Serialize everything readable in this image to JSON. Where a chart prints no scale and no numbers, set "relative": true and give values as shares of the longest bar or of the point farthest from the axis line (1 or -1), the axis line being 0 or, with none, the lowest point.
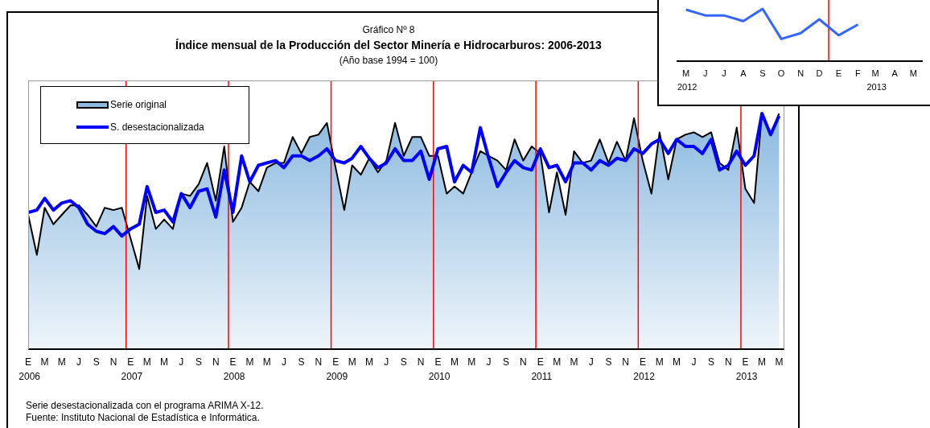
{
  "chart_data": [
    {
      "type": "area",
      "title": "Índice mensual de la Producción del Sector Minería e Hidrocarburos: 2006-2013",
      "subtitle": "(Año base 1994 = 100)",
      "annotations": [
        "Gráfico Nº 8",
        "Serie desestacionalizada con el programa ARIMA X-12.",
        "Fuente: Instituto Nacional de Estadística e Informática."
      ],
      "relative": true,
      "legend": "top left",
      "grid": false,
      "x": [
        "2006-01",
        "2006-02",
        "2006-03",
        "2006-04",
        "2006-05",
        "2006-06",
        "2006-07",
        "2006-08",
        "2006-09",
        "2006-10",
        "2006-11",
        "2006-12",
        "2007-01",
        "2007-02",
        "2007-03",
        "2007-04",
        "2007-05",
        "2007-06",
        "2007-07",
        "2007-08",
        "2007-09",
        "2007-10",
        "2007-11",
        "2007-12",
        "2008-01",
        "2008-02",
        "2008-03",
        "2008-04",
        "2008-05",
        "2008-06",
        "2008-07",
        "2008-08",
        "2008-09",
        "2008-10",
        "2008-11",
        "2008-12",
        "2009-01",
        "2009-02",
        "2009-03",
        "2009-04",
        "2009-05",
        "2009-06",
        "2009-07",
        "2009-08",
        "2009-09",
        "2009-10",
        "2009-11",
        "2009-12",
        "2010-01",
        "2010-02",
        "2010-03",
        "2010-04",
        "2010-05",
        "2010-06",
        "2010-07",
        "2010-08",
        "2010-09",
        "2010-10",
        "2010-11",
        "2010-12",
        "2011-01",
        "2011-02",
        "2011-03",
        "2011-04",
        "2011-05",
        "2011-06",
        "2011-07",
        "2011-08",
        "2011-09",
        "2011-10",
        "2011-11",
        "2011-12",
        "2012-01",
        "2012-02",
        "2012-03",
        "2012-04",
        "2012-05",
        "2012-06",
        "2012-07",
        "2012-08",
        "2012-09",
        "2012-10",
        "2012-11",
        "2012-12",
        "2013-01",
        "2013-02",
        "2013-03",
        "2013-04",
        "2013-05"
      ],
      "xlim": [
        "2006-01",
        "2013-05-20"
      ],
      "xticks": [
        {
          "value": "2006-01",
          "label": "E 2006"
        },
        {
          "value": "2006-03",
          "label": "M"
        },
        {
          "value": "2006-05",
          "label": "M"
        },
        {
          "value": "2006-07",
          "label": "J"
        },
        {
          "value": "2006-09",
          "label": "S"
        },
        {
          "value": "2006-11",
          "label": "N"
        },
        {
          "value": "2007-01",
          "label": "E 2007"
        },
        {
          "value": "2007-03",
          "label": "M"
        },
        {
          "value": "2007-05",
          "label": "M"
        },
        {
          "value": "2007-07",
          "label": "J"
        },
        {
          "value": "2007-09",
          "label": "S"
        },
        {
          "value": "2007-11",
          "label": "N"
        },
        {
          "value": "2008-01",
          "label": "E 2008"
        },
        {
          "value": "2008-03",
          "label": "M"
        },
        {
          "value": "2008-05",
          "label": "M"
        },
        {
          "value": "2008-07",
          "label": "J"
        },
        {
          "value": "2008-09",
          "label": "S"
        },
        {
          "value": "2008-11",
          "label": "N"
        },
        {
          "value": "2009-01",
          "label": "E 2009"
        },
        {
          "value": "2009-03",
          "label": "M"
        },
        {
          "value": "2009-05",
          "label": "M"
        },
        {
          "value": "2009-07",
          "label": "J"
        },
        {
          "value": "2009-09",
          "label": "S"
        },
        {
          "value": "2009-11",
          "label": "N"
        },
        {
          "value": "2010-01",
          "label": "E 2010"
        },
        {
          "value": "2010-03",
          "label": "M"
        },
        {
          "value": "2010-05",
          "label": "M"
        },
        {
          "value": "2010-07",
          "label": "J"
        },
        {
          "value": "2010-09",
          "label": "S"
        },
        {
          "value": "2010-11",
          "label": "N"
        },
        {
          "value": "2011-01",
          "label": "E 2011"
        },
        {
          "value": "2011-03",
          "label": "M"
        },
        {
          "value": "2011-05",
          "label": "M"
        },
        {
          "value": "2011-07",
          "label": "J"
        },
        {
          "value": "2011-09",
          "label": "S"
        },
        {
          "value": "2011-11",
          "label": "N"
        },
        {
          "value": "2012-01",
          "label": "E 2012"
        },
        {
          "value": "2012-03",
          "label": "M"
        },
        {
          "value": "2012-05",
          "label": "M"
        },
        {
          "value": "2012-07",
          "label": "J"
        },
        {
          "value": "2012-09",
          "label": "S"
        },
        {
          "value": "2012-11",
          "label": "N"
        },
        {
          "value": "2013-01",
          "label": "E 2013"
        },
        {
          "value": "2013-03",
          "label": "M"
        },
        {
          "value": "2013-05",
          "label": "M"
        }
      ],
      "series": [
        {
          "name": "Serie original",
          "color": "#8cbae0",
          "values": [
            0.57,
            0.4,
            0.6,
            0.53,
            0.57,
            0.61,
            0.61,
            0.57,
            0.52,
            0.6,
            0.59,
            0.6,
            0.47,
            0.34,
            0.65,
            0.51,
            0.55,
            0.51,
            0.66,
            0.65,
            0.7,
            0.79,
            0.63,
            0.86,
            0.54,
            0.6,
            0.71,
            0.67,
            0.77,
            0.79,
            0.79,
            0.9,
            0.83,
            0.9,
            0.91,
            0.96,
            0.77,
            0.59,
            0.78,
            0.74,
            0.81,
            0.75,
            0.8,
            0.96,
            0.82,
            0.9,
            0.9,
            0.82,
            0.82,
            0.66,
            0.69,
            0.66,
            0.75,
            0.84,
            0.82,
            0.8,
            0.76,
            0.89,
            0.8,
            0.86,
            0.83,
            0.58,
            0.75,
            0.57,
            0.84,
            0.79,
            0.8,
            0.89,
            0.79,
            0.88,
            0.8,
            0.98,
            0.8,
            0.66,
            0.92,
            0.72,
            0.89,
            0.91,
            0.92,
            0.9,
            0.92,
            0.79,
            0.76,
            0.94,
            0.68,
            0.62,
            1,
            0.91,
            1
          ]
        },
        {
          "name": "S. desestacionalizada",
          "type": "line",
          "color": "#0000ff",
          "values": [
            0.58,
            0.59,
            0.64,
            0.59,
            0.62,
            0.63,
            0.6,
            0.53,
            0.5,
            0.49,
            0.52,
            0.48,
            0.51,
            0.53,
            0.69,
            0.58,
            0.59,
            0.54,
            0.66,
            0.6,
            0.67,
            0.68,
            0.56,
            0.76,
            0.58,
            0.82,
            0.71,
            0.78,
            0.79,
            0.8,
            0.77,
            0.82,
            0.82,
            0.8,
            0.82,
            0.85,
            0.8,
            0.79,
            0.81,
            0.86,
            0.81,
            0.77,
            0.79,
            0.85,
            0.8,
            0.8,
            0.84,
            0.72,
            0.85,
            0.86,
            0.71,
            0.78,
            0.75,
            0.94,
            0.81,
            0.69,
            0.75,
            0.8,
            0.77,
            0.76,
            0.85,
            0.77,
            0.78,
            0.71,
            0.79,
            0.79,
            0.76,
            0.8,
            0.78,
            0.81,
            0.8,
            0.85,
            0.83,
            0.87,
            0.89,
            0.83,
            0.89,
            0.86,
            0.86,
            0.83,
            0.89,
            0.76,
            0.78,
            0.84,
            0.78,
            0.82,
            1,
            0.91,
            0.99
          ]
        }
      ],
      "ref_lines": [
        {
          "axis": "x",
          "value": "2006-12-16",
          "color": "#ff0000"
        },
        {
          "axis": "x",
          "value": "2007-12-16",
          "color": "#ff0000"
        },
        {
          "axis": "x",
          "value": "2008-12-16",
          "color": "#ff0000"
        },
        {
          "axis": "x",
          "value": "2009-12-16",
          "color": "#ff0000"
        },
        {
          "axis": "x",
          "value": "2010-12-16",
          "color": "#ff0000"
        },
        {
          "axis": "x",
          "value": "2011-12-16",
          "color": "#ff0000"
        },
        {
          "axis": "x",
          "value": "2012-12-16",
          "color": "#ff0000"
        }
      ]
    },
    {
      "type": "line",
      "relative": true,
      "legend": false,
      "grid": false,
      "x": [
        "2012-05",
        "2012-06",
        "2012-07",
        "2012-08",
        "2012-09",
        "2012-10",
        "2012-11",
        "2012-12",
        "2013-01",
        "2013-02"
      ],
      "xlim": [
        "2012-04-16",
        "2013-05-16"
      ],
      "xticks": [
        {
          "value": "2012-05",
          "label": "M 2012"
        },
        {
          "value": "2012-06",
          "label": "J"
        },
        {
          "value": "2012-07",
          "label": "J"
        },
        {
          "value": "2012-08",
          "label": "A"
        },
        {
          "value": "2012-09",
          "label": "S"
        },
        {
          "value": "2012-10",
          "label": "O"
        },
        {
          "value": "2012-11",
          "label": "N"
        },
        {
          "value": "2012-12",
          "label": "D"
        },
        {
          "value": "2013-01",
          "label": "E"
        },
        {
          "value": "2013-02",
          "label": "F"
        },
        {
          "value": "2013-03",
          "label": "M 2013"
        },
        {
          "value": "2013-04",
          "label": "A"
        },
        {
          "value": "2013-05",
          "label": "M"
        }
      ],
      "series": [
        {
          "color": "#3366ff",
          "values": [
            0.985,
            0.875,
            0.875,
            0.765,
            1,
            0.425,
            0.535,
            0.8,
            0.495,
            0.7
          ]
        }
      ],
      "ref_lines": [
        {
          "axis": "x",
          "value": "2012-12-16",
          "color": "#ff0000"
        }
      ]
    }
  ]
}
